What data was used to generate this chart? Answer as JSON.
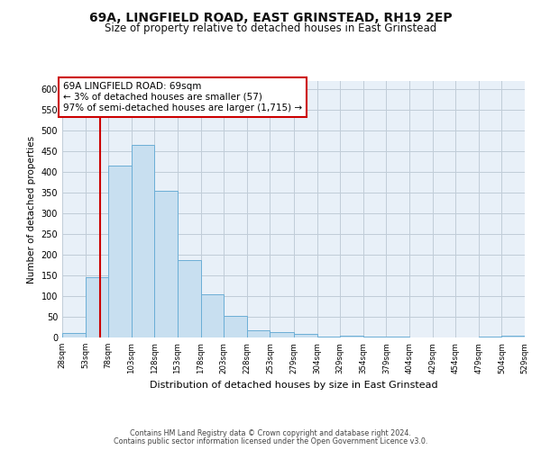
{
  "title": "69A, LINGFIELD ROAD, EAST GRINSTEAD, RH19 2EP",
  "subtitle": "Size of property relative to detached houses in East Grinstead",
  "xlabel": "Distribution of detached houses by size in East Grinstead",
  "ylabel": "Number of detached properties",
  "bin_edges": [
    28,
    53,
    78,
    103,
    128,
    153,
    178,
    203,
    228,
    253,
    279,
    304,
    329,
    354,
    379,
    404,
    429,
    454,
    479,
    504,
    529
  ],
  "bin_counts": [
    10,
    145,
    415,
    465,
    355,
    188,
    105,
    53,
    18,
    14,
    8,
    3,
    4,
    3,
    3,
    0,
    0,
    0,
    3,
    4
  ],
  "bar_color": "#c8dff0",
  "bar_edge_color": "#6baed6",
  "plot_bg_color": "#e8f0f8",
  "property_size": 69,
  "property_line_color": "#cc0000",
  "annotation_line1": "69A LINGFIELD ROAD: 69sqm",
  "annotation_line2": "← 3% of detached houses are smaller (57)",
  "annotation_line3": "97% of semi-detached houses are larger (1,715) →",
  "annotation_box_color": "#ffffff",
  "annotation_box_edge_color": "#cc0000",
  "ylim": [
    0,
    620
  ],
  "yticks": [
    0,
    50,
    100,
    150,
    200,
    250,
    300,
    350,
    400,
    450,
    500,
    550,
    600
  ],
  "footnote1": "Contains HM Land Registry data © Crown copyright and database right 2024.",
  "footnote2": "Contains public sector information licensed under the Open Government Licence v3.0.",
  "background_color": "#ffffff",
  "grid_color": "#c0ccd8",
  "title_fontsize": 10,
  "subtitle_fontsize": 8.5,
  "tick_labels": [
    "28sqm",
    "53sqm",
    "78sqm",
    "103sqm",
    "128sqm",
    "153sqm",
    "178sqm",
    "203sqm",
    "228sqm",
    "253sqm",
    "279sqm",
    "304sqm",
    "329sqm",
    "354sqm",
    "379sqm",
    "404sqm",
    "429sqm",
    "454sqm",
    "479sqm",
    "504sqm",
    "529sqm"
  ]
}
